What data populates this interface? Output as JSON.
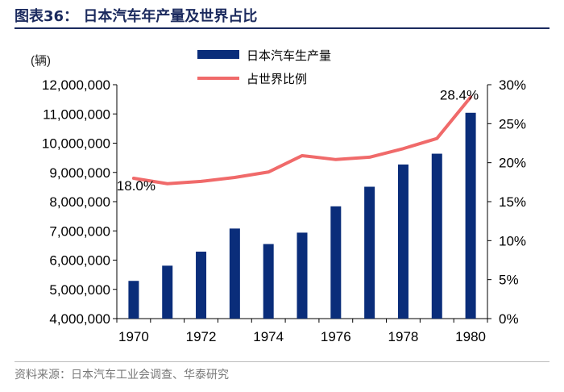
{
  "title": "图表36： 日本汽车年产量及世界占比",
  "source": "资料来源：日本汽车工业会调查、华泰研究",
  "chart_data": {
    "type": "bar+line",
    "unit_label": "(辆)",
    "x": [
      1970,
      1971,
      1972,
      1973,
      1974,
      1975,
      1976,
      1977,
      1978,
      1979,
      1980
    ],
    "xticks": [
      "1970",
      "1972",
      "1974",
      "1976",
      "1978",
      "1980"
    ],
    "series": [
      {
        "name": "日本汽车生产量",
        "type": "bar",
        "axis": "left",
        "color": "#0a2d7a",
        "values": [
          5290000,
          5810000,
          6290000,
          7080000,
          6550000,
          6940000,
          7840000,
          8510000,
          9270000,
          9640000,
          11040000
        ]
      },
      {
        "name": "占世界比例",
        "type": "line",
        "axis": "right",
        "color": "#f06a6a",
        "values": [
          18.0,
          17.3,
          17.6,
          18.1,
          18.8,
          20.9,
          20.4,
          20.7,
          21.8,
          23.1,
          28.4
        ]
      }
    ],
    "ylim_left": [
      4000000,
      12000000
    ],
    "yticks_left": [
      "4,000,000",
      "5,000,000",
      "6,000,000",
      "7,000,000",
      "8,000,000",
      "9,000,000",
      "10,000,000",
      "11,000,000",
      "12,000,000"
    ],
    "ylim_right": [
      0,
      30
    ],
    "yticks_right": [
      "0%",
      "5%",
      "10%",
      "15%",
      "20%",
      "25%",
      "30%"
    ],
    "annotations": [
      {
        "index": 0,
        "text": "18.0%"
      },
      {
        "index": 10,
        "text": "28.4%"
      }
    ]
  }
}
